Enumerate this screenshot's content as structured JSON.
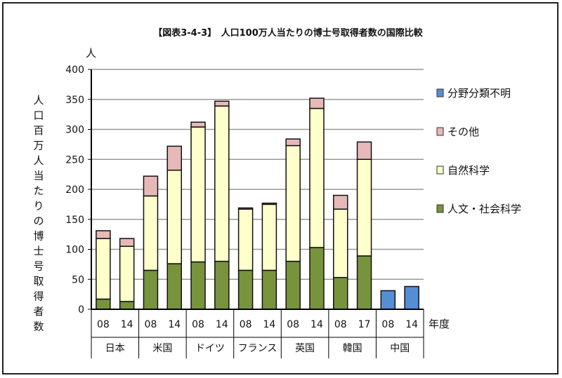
{
  "chart_data": {
    "type": "bar",
    "stacked": true,
    "title": "【図表3-4-3】　人口100万人当たりの博士号取得者数の国際比較",
    "ylabel": "人口百万人当たりの博士号取得者数",
    "yunit": "人",
    "xlabel": "年度",
    "ylim": [
      0,
      400
    ],
    "yticks": [
      0,
      50,
      100,
      150,
      200,
      250,
      300,
      350,
      400
    ],
    "grid": true,
    "legend_position": "right",
    "groups": [
      {
        "name": "日本",
        "years": [
          "08",
          "14"
        ]
      },
      {
        "name": "米国",
        "years": [
          "08",
          "14"
        ]
      },
      {
        "name": "ドイツ",
        "years": [
          "08",
          "14"
        ]
      },
      {
        "name": "フランス",
        "years": [
          "08",
          "14"
        ]
      },
      {
        "name": "英国",
        "years": [
          "08",
          "14"
        ]
      },
      {
        "name": "韓国",
        "years": [
          "08",
          "17"
        ]
      },
      {
        "name": "中国",
        "years": [
          "08",
          "14"
        ]
      }
    ],
    "series": [
      {
        "name": "人文・社会科学",
        "color": "#77933c",
        "values": [
          17,
          13,
          65,
          76,
          79,
          80,
          65,
          65,
          80,
          103,
          53,
          89,
          0,
          0
        ]
      },
      {
        "name": "自然科学",
        "color": "#ffffcc",
        "values": [
          101,
          92,
          124,
          156,
          225,
          259,
          102,
          110,
          193,
          232,
          114,
          161,
          0,
          0
        ]
      },
      {
        "name": "その他",
        "color": "#e6b9b8",
        "values": [
          13,
          13,
          33,
          40,
          8,
          8,
          2,
          2,
          11,
          17,
          23,
          29,
          0,
          0
        ]
      },
      {
        "name": "分野分類不明",
        "color": "#558ed5",
        "values": [
          0,
          0,
          0,
          0,
          0,
          0,
          0,
          0,
          0,
          0,
          0,
          0,
          31,
          38
        ]
      }
    ]
  }
}
